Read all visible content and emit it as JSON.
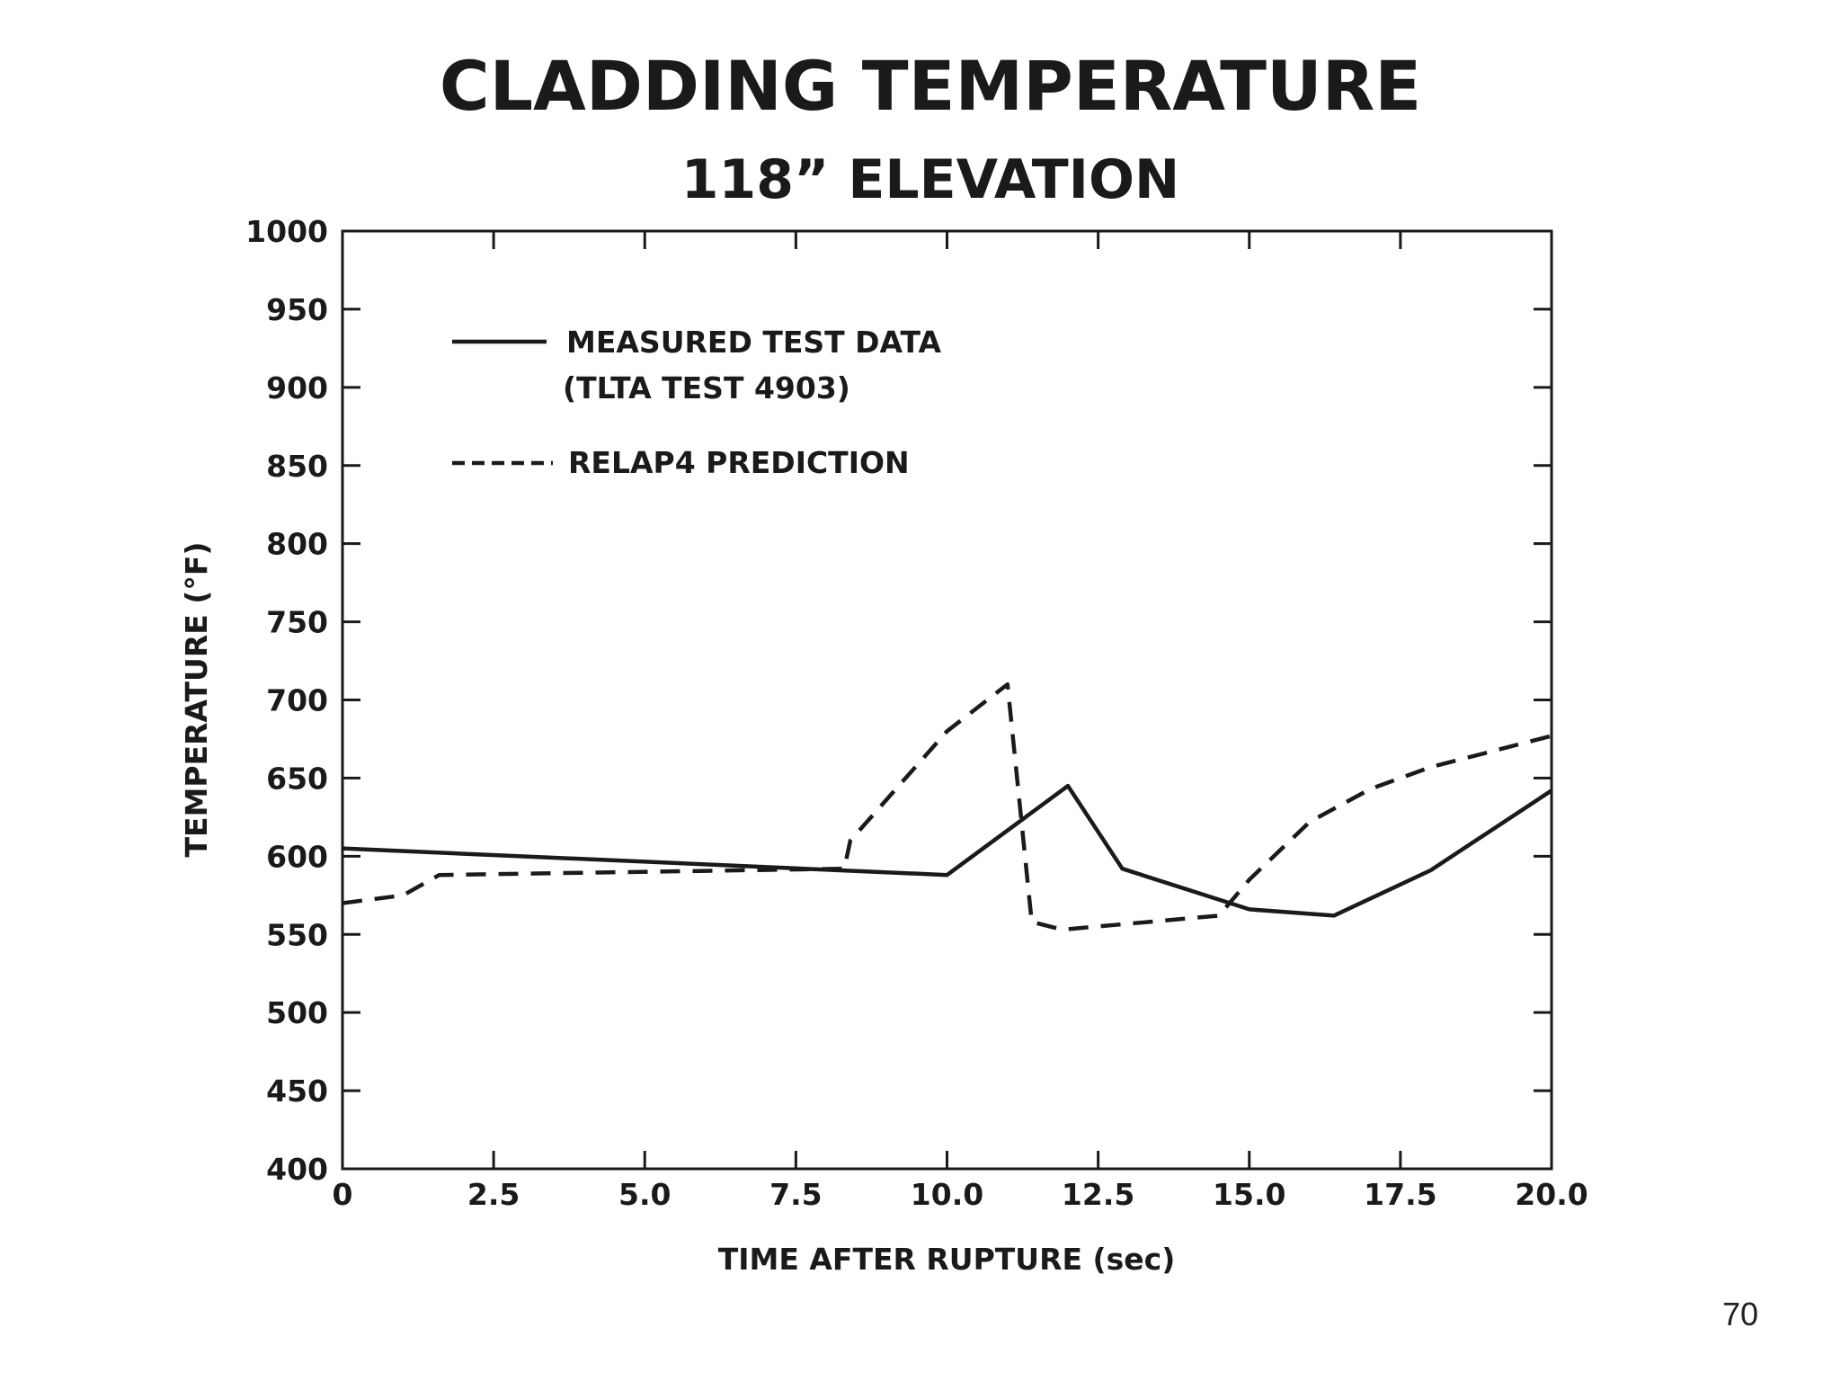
{
  "chart_data": {
    "type": "line",
    "title": "CLADDING TEMPERATURE",
    "subtitle": "118” ELEVATION",
    "xlabel": "TIME AFTER RUPTURE (sec)",
    "ylabel": "TEMPERATURE (°F)",
    "xlim": [
      0,
      20
    ],
    "ylim": [
      400,
      1000
    ],
    "xticks": [
      0,
      2.5,
      5.0,
      7.5,
      10.0,
      12.5,
      15.0,
      17.5,
      20.0
    ],
    "xtick_labels": [
      "0",
      "2.5",
      "5.0",
      "7.5",
      "10.0",
      "12.5",
      "15.0",
      "17.5",
      "20.0"
    ],
    "yticks": [
      400,
      450,
      500,
      550,
      600,
      650,
      700,
      750,
      800,
      850,
      900,
      950,
      1000
    ],
    "ytick_labels": [
      "400",
      "450",
      "500",
      "550",
      "600",
      "650",
      "700",
      "750",
      "800",
      "850",
      "900",
      "950",
      "1000"
    ],
    "grid": false,
    "legend_position": "top-left",
    "series": [
      {
        "name": "MEASURED TEST DATA",
        "name_line2": "(TLTA TEST 4903)",
        "style": "solid",
        "x": [
          0,
          10.0,
          12.0,
          12.9,
          15.0,
          16.4,
          18.0,
          20.0
        ],
        "y": [
          605,
          588,
          645,
          592,
          566,
          562,
          591,
          642
        ]
      },
      {
        "name": "RELAP4 PREDICTION",
        "style": "dashed",
        "x": [
          0,
          1.0,
          1.6,
          8.3,
          8.4,
          10.0,
          11.0,
          11.4,
          11.9,
          14.5,
          15.0,
          16.0,
          17.0,
          18.0,
          19.0,
          20.0
        ],
        "y": [
          570,
          575,
          588,
          592,
          610,
          680,
          710,
          558,
          553,
          562,
          585,
          622,
          643,
          657,
          667,
          677
        ]
      }
    ]
  },
  "page_number": "70"
}
